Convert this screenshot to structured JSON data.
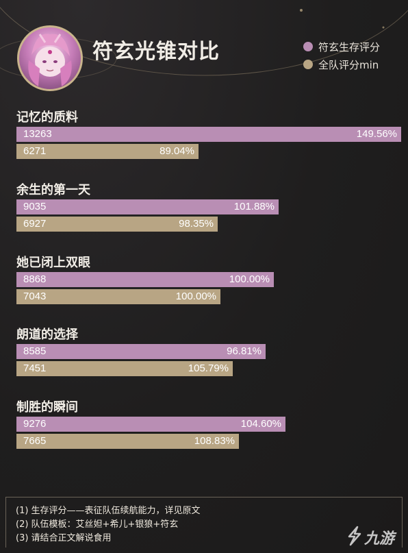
{
  "header": {
    "title": "符玄光锥对比",
    "legend": [
      {
        "label": "符玄生存评分",
        "color": "#b98eb4"
      },
      {
        "label": "全队评分min",
        "color": "#b8a584"
      }
    ]
  },
  "chart_data": {
    "type": "bar",
    "title": "符玄光锥对比",
    "orientation": "horizontal",
    "categories": [
      "记忆的质料",
      "余生的第一天",
      "她已闭上双眼",
      "朗道的选择",
      "制胜的瞬间"
    ],
    "series": [
      {
        "name": "符玄生存评分",
        "color": "#b98eb4",
        "values": [
          13263,
          9035,
          8868,
          8585,
          9276
        ],
        "labels": [
          "149.56%",
          "101.88%",
          "100.00%",
          "96.81%",
          "104.60%"
        ]
      },
      {
        "name": "全队评分min",
        "color": "#b8a584",
        "values": [
          6271,
          6927,
          7043,
          7451,
          7665
        ],
        "labels": [
          "89.04%",
          "98.35%",
          "100.00%",
          "105.79%",
          "108.83%"
        ]
      }
    ],
    "grid": false,
    "legend_position": "top-right"
  },
  "notes": [
    "(1) 生存评分——表征队伍续航能力，详见原文",
    "(2) 队伍模板：艾丝妲+希儿+银狼+符玄",
    "(3) 请结合正文解说食用"
  ],
  "watermark": {
    "text": "九游"
  }
}
